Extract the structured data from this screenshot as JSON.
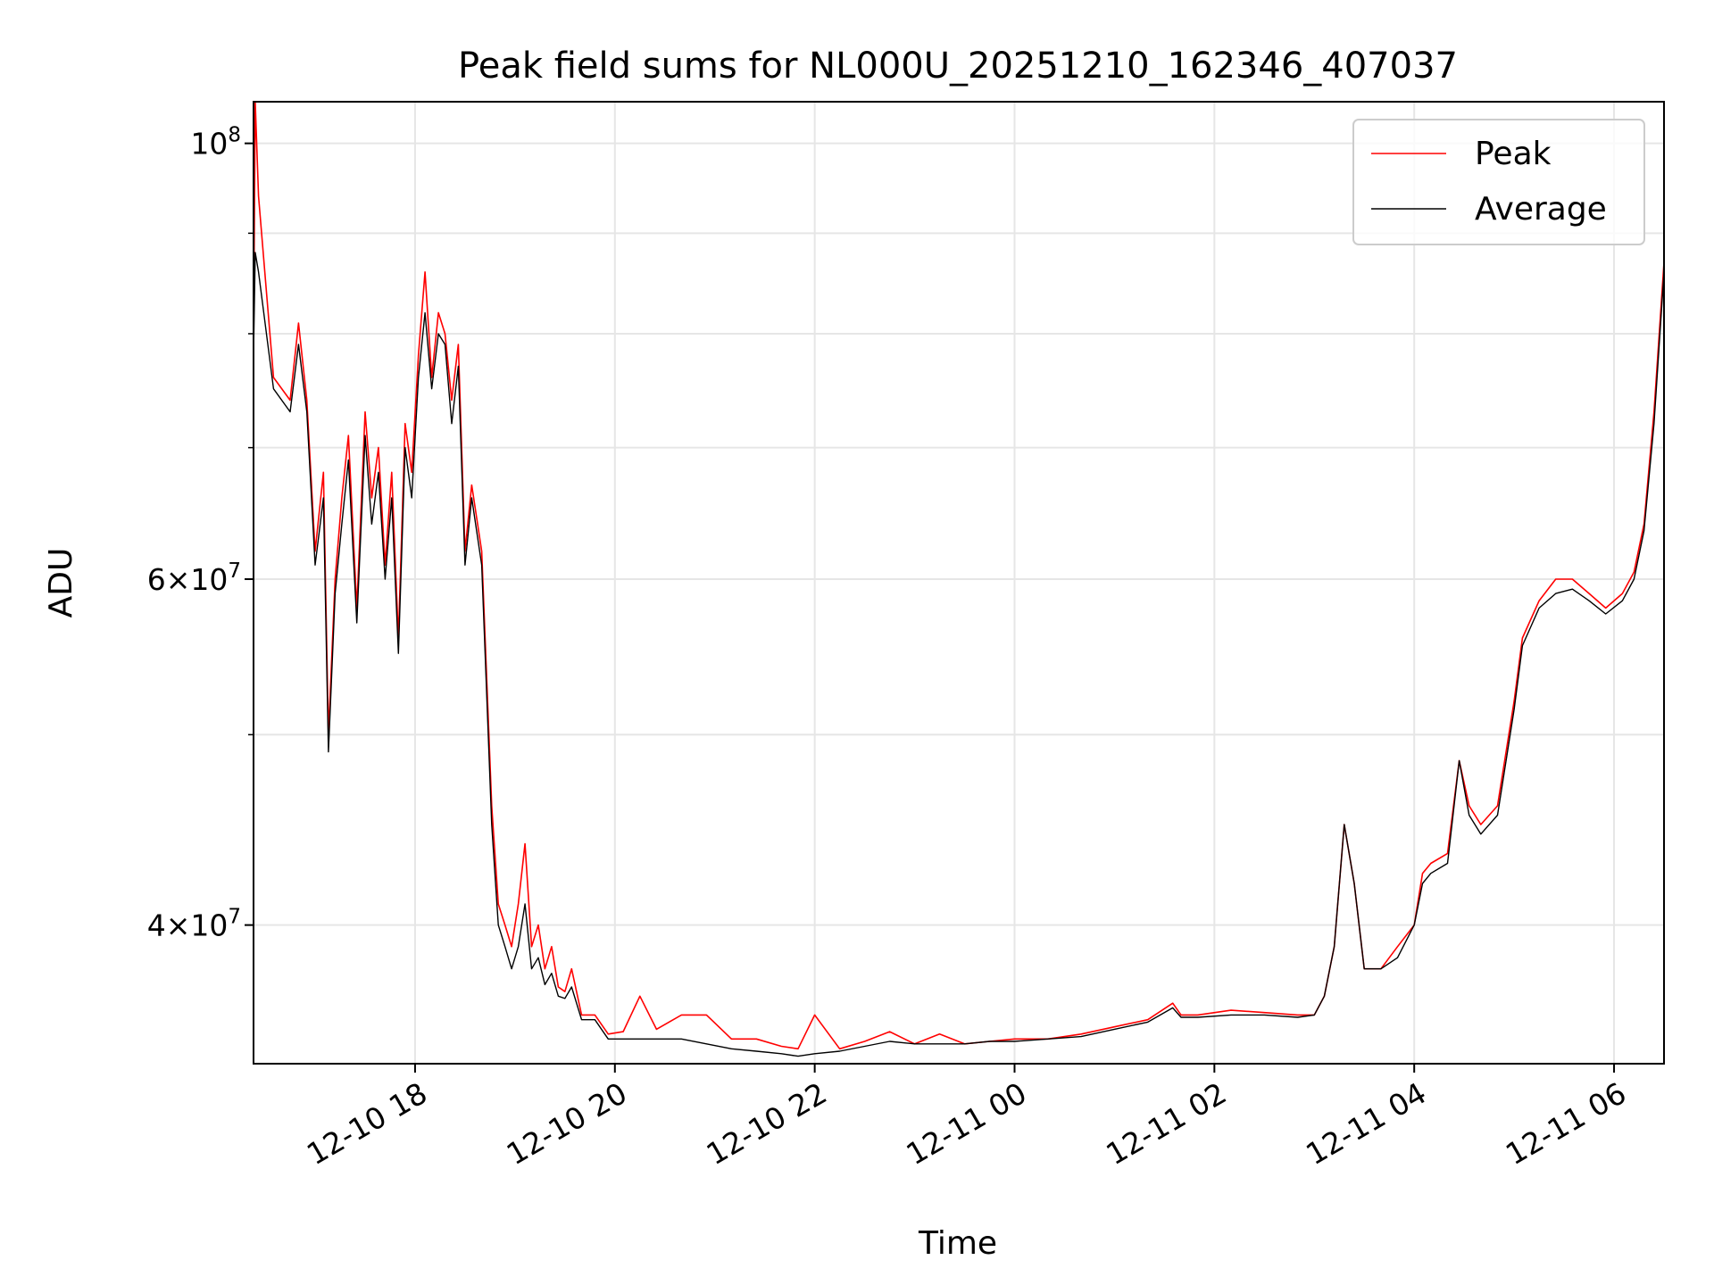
{
  "chart_data": {
    "type": "line",
    "title": "Peak field sums for NL000U_20251210_162346_407037",
    "xlabel": "Time",
    "ylabel": "ADU",
    "y_scale": "log",
    "ylim": [
      34000000,
      105000000
    ],
    "xlim": [
      "2025-12-10 16:23",
      "2025-12-11 06:30"
    ],
    "grid": true,
    "legend_position": "top-right",
    "x_ticks": [
      {
        "t": "2025-12-10 18:00",
        "label": "12-10 18"
      },
      {
        "t": "2025-12-10 20:00",
        "label": "12-10 20"
      },
      {
        "t": "2025-12-10 22:00",
        "label": "12-10 22"
      },
      {
        "t": "2025-12-11 00:00",
        "label": "12-11 00"
      },
      {
        "t": "2025-12-11 02:00",
        "label": "12-11 02"
      },
      {
        "t": "2025-12-11 04:00",
        "label": "12-11 04"
      },
      {
        "t": "2025-12-11 06:00",
        "label": "12-11 06"
      }
    ],
    "y_ticks_major": [
      {
        "v": 40000000,
        "mant": "4",
        "times": "×",
        "base": "10",
        "exp": "7"
      },
      {
        "v": 60000000,
        "mant": "6",
        "times": "×",
        "base": "10",
        "exp": "7"
      },
      {
        "v": 100000000,
        "mant": "",
        "times": "",
        "base": "10",
        "exp": "8"
      }
    ],
    "y_ticks_minor": [
      50000000,
      70000000,
      80000000,
      90000000
    ],
    "series": [
      {
        "name": "Peak",
        "color": "#ff0000",
        "x": [
          "2025-12-10 16:23",
          "2025-12-10 16:24",
          "2025-12-10 16:26",
          "2025-12-10 16:35",
          "2025-12-10 16:45",
          "2025-12-10 16:50",
          "2025-12-10 16:55",
          "2025-12-10 17:00",
          "2025-12-10 17:05",
          "2025-12-10 17:08",
          "2025-12-10 17:12",
          "2025-12-10 17:16",
          "2025-12-10 17:20",
          "2025-12-10 17:25",
          "2025-12-10 17:30",
          "2025-12-10 17:34",
          "2025-12-10 17:38",
          "2025-12-10 17:42",
          "2025-12-10 17:46",
          "2025-12-10 17:50",
          "2025-12-10 17:54",
          "2025-12-10 17:58",
          "2025-12-10 18:02",
          "2025-12-10 18:06",
          "2025-12-10 18:10",
          "2025-12-10 18:14",
          "2025-12-10 18:18",
          "2025-12-10 18:22",
          "2025-12-10 18:26",
          "2025-12-10 18:30",
          "2025-12-10 18:34",
          "2025-12-10 18:40",
          "2025-12-10 18:46",
          "2025-12-10 18:50",
          "2025-12-10 18:54",
          "2025-12-10 18:58",
          "2025-12-10 19:02",
          "2025-12-10 19:06",
          "2025-12-10 19:10",
          "2025-12-10 19:14",
          "2025-12-10 19:18",
          "2025-12-10 19:22",
          "2025-12-10 19:26",
          "2025-12-10 19:30",
          "2025-12-10 19:34",
          "2025-12-10 19:40",
          "2025-12-10 19:48",
          "2025-12-10 19:56",
          "2025-12-10 20:05",
          "2025-12-10 20:15",
          "2025-12-10 20:25",
          "2025-12-10 20:40",
          "2025-12-10 20:55",
          "2025-12-10 21:10",
          "2025-12-10 21:25",
          "2025-12-10 21:40",
          "2025-12-10 21:50",
          "2025-12-10 22:00",
          "2025-12-10 22:15",
          "2025-12-10 22:30",
          "2025-12-10 22:45",
          "2025-12-10 23:00",
          "2025-12-10 23:15",
          "2025-12-10 23:30",
          "2025-12-10 23:45",
          "2025-12-11 00:00",
          "2025-12-11 00:20",
          "2025-12-11 00:40",
          "2025-12-11 01:00",
          "2025-12-11 01:20",
          "2025-12-11 01:35",
          "2025-12-11 01:40",
          "2025-12-11 01:50",
          "2025-12-11 02:10",
          "2025-12-11 02:30",
          "2025-12-11 02:50",
          "2025-12-11 03:00",
          "2025-12-11 03:06",
          "2025-12-11 03:12",
          "2025-12-11 03:18",
          "2025-12-11 03:24",
          "2025-12-11 03:30",
          "2025-12-11 03:40",
          "2025-12-11 03:50",
          "2025-12-11 04:00",
          "2025-12-11 04:05",
          "2025-12-11 04:10",
          "2025-12-11 04:20",
          "2025-12-11 04:27",
          "2025-12-11 04:33",
          "2025-12-11 04:40",
          "2025-12-11 04:50",
          "2025-12-11 05:00",
          "2025-12-11 05:05",
          "2025-12-11 05:15",
          "2025-12-11 05:25",
          "2025-12-11 05:35",
          "2025-12-11 05:45",
          "2025-12-11 05:55",
          "2025-12-11 06:05",
          "2025-12-11 06:12",
          "2025-12-11 06:18",
          "2025-12-11 06:24",
          "2025-12-11 06:30"
        ],
        "values": [
          79000000,
          105000000,
          94000000,
          76000000,
          74000000,
          81000000,
          74000000,
          62000000,
          68000000,
          50000000,
          60000000,
          66000000,
          71000000,
          58000000,
          73000000,
          66000000,
          70000000,
          61000000,
          68000000,
          56000000,
          72000000,
          68000000,
          78000000,
          86000000,
          76000000,
          82000000,
          80000000,
          74000000,
          79000000,
          62000000,
          67000000,
          62000000,
          46000000,
          41000000,
          40000000,
          39000000,
          41000000,
          44000000,
          39000000,
          40000000,
          38000000,
          39000000,
          37200000,
          37000000,
          38000000,
          36000000,
          36000000,
          35200000,
          35300000,
          36800000,
          35400000,
          36000000,
          36000000,
          35000000,
          35000000,
          34700000,
          34600000,
          36000000,
          34600000,
          34900000,
          35300000,
          34800000,
          35200000,
          34800000,
          34900000,
          35000000,
          35000000,
          35200000,
          35500000,
          35800000,
          36500000,
          36000000,
          36000000,
          36200000,
          36100000,
          36000000,
          36000000,
          36800000,
          39000000,
          45000000,
          42000000,
          38000000,
          38000000,
          39000000,
          40000000,
          42500000,
          43000000,
          43500000,
          48500000,
          46000000,
          45000000,
          46000000,
          52000000,
          56000000,
          58500000,
          60000000,
          60000000,
          59000000,
          58000000,
          59000000,
          60500000,
          64000000,
          73000000,
          87000000
        ]
      },
      {
        "name": "Average",
        "color": "#000000",
        "x": [
          "2025-12-10 16:23",
          "2025-12-10 16:24",
          "2025-12-10 16:26",
          "2025-12-10 16:35",
          "2025-12-10 16:45",
          "2025-12-10 16:50",
          "2025-12-10 16:55",
          "2025-12-10 17:00",
          "2025-12-10 17:05",
          "2025-12-10 17:08",
          "2025-12-10 17:12",
          "2025-12-10 17:16",
          "2025-12-10 17:20",
          "2025-12-10 17:25",
          "2025-12-10 17:30",
          "2025-12-10 17:34",
          "2025-12-10 17:38",
          "2025-12-10 17:42",
          "2025-12-10 17:46",
          "2025-12-10 17:50",
          "2025-12-10 17:54",
          "2025-12-10 17:58",
          "2025-12-10 18:02",
          "2025-12-10 18:06",
          "2025-12-10 18:10",
          "2025-12-10 18:14",
          "2025-12-10 18:18",
          "2025-12-10 18:22",
          "2025-12-10 18:26",
          "2025-12-10 18:30",
          "2025-12-10 18:34",
          "2025-12-10 18:40",
          "2025-12-10 18:46",
          "2025-12-10 18:50",
          "2025-12-10 18:54",
          "2025-12-10 18:58",
          "2025-12-10 19:02",
          "2025-12-10 19:06",
          "2025-12-10 19:10",
          "2025-12-10 19:14",
          "2025-12-10 19:18",
          "2025-12-10 19:22",
          "2025-12-10 19:26",
          "2025-12-10 19:30",
          "2025-12-10 19:34",
          "2025-12-10 19:40",
          "2025-12-10 19:48",
          "2025-12-10 19:56",
          "2025-12-10 20:05",
          "2025-12-10 20:15",
          "2025-12-10 20:25",
          "2025-12-10 20:40",
          "2025-12-10 20:55",
          "2025-12-10 21:10",
          "2025-12-10 21:25",
          "2025-12-10 21:40",
          "2025-12-10 21:50",
          "2025-12-10 22:00",
          "2025-12-10 22:15",
          "2025-12-10 22:30",
          "2025-12-10 22:45",
          "2025-12-10 23:00",
          "2025-12-10 23:15",
          "2025-12-10 23:30",
          "2025-12-10 23:45",
          "2025-12-11 00:00",
          "2025-12-11 00:20",
          "2025-12-11 00:40",
          "2025-12-11 01:00",
          "2025-12-11 01:20",
          "2025-12-11 01:35",
          "2025-12-11 01:40",
          "2025-12-11 01:50",
          "2025-12-11 02:10",
          "2025-12-11 02:30",
          "2025-12-11 02:50",
          "2025-12-11 03:00",
          "2025-12-11 03:06",
          "2025-12-11 03:12",
          "2025-12-11 03:18",
          "2025-12-11 03:24",
          "2025-12-11 03:30",
          "2025-12-11 03:40",
          "2025-12-11 03:50",
          "2025-12-11 04:00",
          "2025-12-11 04:05",
          "2025-12-11 04:10",
          "2025-12-11 04:20",
          "2025-12-11 04:27",
          "2025-12-11 04:33",
          "2025-12-11 04:40",
          "2025-12-11 04:50",
          "2025-12-11 05:00",
          "2025-12-11 05:05",
          "2025-12-11 05:15",
          "2025-12-11 05:25",
          "2025-12-11 05:35",
          "2025-12-11 05:45",
          "2025-12-11 05:55",
          "2025-12-11 06:05",
          "2025-12-11 06:12",
          "2025-12-11 06:18",
          "2025-12-11 06:24",
          "2025-12-11 06:30"
        ],
        "values": [
          78000000,
          88000000,
          86000000,
          75000000,
          73000000,
          79000000,
          73000000,
          61000000,
          66000000,
          49000000,
          59000000,
          64000000,
          69000000,
          57000000,
          71000000,
          64000000,
          68000000,
          60000000,
          66000000,
          55000000,
          70000000,
          66000000,
          76000000,
          82000000,
          75000000,
          80000000,
          79000000,
          72000000,
          77000000,
          61000000,
          66000000,
          61000000,
          45000000,
          40000000,
          39000000,
          38000000,
          39000000,
          41000000,
          38000000,
          38500000,
          37300000,
          37800000,
          36800000,
          36700000,
          37200000,
          35800000,
          35800000,
          35000000,
          35000000,
          35000000,
          35000000,
          35000000,
          34800000,
          34600000,
          34500000,
          34400000,
          34300000,
          34400000,
          34500000,
          34700000,
          34900000,
          34800000,
          34800000,
          34800000,
          34900000,
          34900000,
          35000000,
          35100000,
          35400000,
          35700000,
          36300000,
          35900000,
          35900000,
          36000000,
          36000000,
          35900000,
          36000000,
          36800000,
          39000000,
          45000000,
          42000000,
          38000000,
          38000000,
          38500000,
          40000000,
          42000000,
          42500000,
          43000000,
          48500000,
          45500000,
          44500000,
          45500000,
          51500000,
          55500000,
          58000000,
          59000000,
          59300000,
          58500000,
          57600000,
          58500000,
          60000000,
          63500000,
          72000000,
          86000000
        ]
      }
    ]
  }
}
